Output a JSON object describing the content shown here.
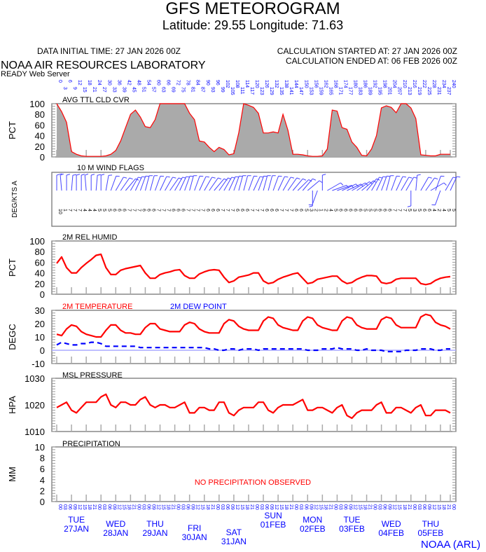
{
  "header": {
    "title": "GFS METEOROGRAM",
    "location": "Latitude: 29.55 Longitude:  71.63",
    "data_initial_time": "DATA INITIAL TIME: 27 JAN 2026 00Z",
    "calc_started": "CALCULATION STARTED AT: 27 JAN 2026 00Z",
    "calc_ended": "CALCULATION ENDED AT: 06 FEB 2026 00Z",
    "org": "NOAA AIR RESOURCES LABORATORY",
    "server": "READY Web Server"
  },
  "footer": {
    "credit": "NOAA (ARL)"
  },
  "colors": {
    "axis_text": "#0000ff",
    "series_red": "#ff0000",
    "series_blue": "#0000ff",
    "cloud_fill": "#aaaaaa",
    "zero_line": "#aaaaff"
  },
  "time_axis": {
    "forecast_hours": [
      0,
      3,
      6,
      9,
      12,
      15,
      18,
      21,
      24,
      27,
      30,
      33,
      36,
      39,
      42,
      45,
      48,
      51,
      54,
      57,
      60,
      63,
      66,
      69,
      72,
      75,
      78,
      81,
      84,
      87,
      90,
      93,
      96,
      99,
      102,
      105,
      108,
      111,
      114,
      117,
      120,
      123,
      126,
      129,
      132,
      135,
      138,
      141,
      144,
      147,
      150,
      153,
      156,
      159,
      162,
      165,
      168,
      171,
      174,
      177,
      180,
      183,
      186,
      189,
      192,
      195,
      198,
      201,
      204,
      207,
      210,
      213,
      216,
      219,
      222,
      225,
      228,
      231,
      234,
      237,
      240
    ],
    "utc_hours": [
      "00",
      "03",
      "06",
      "09",
      "12",
      "15",
      "18",
      "21"
    ],
    "days": [
      {
        "dow": "TUE",
        "date": "27JAN"
      },
      {
        "dow": "WED",
        "date": "28JAN"
      },
      {
        "dow": "THU",
        "date": "29JAN"
      },
      {
        "dow": "FRI",
        "date": "30JAN"
      },
      {
        "dow": "SAT",
        "date": "31JAN"
      },
      {
        "dow": "SUN",
        "date": "01FEB"
      },
      {
        "dow": "MON",
        "date": "02FEB"
      },
      {
        "dow": "TUE",
        "date": "03FEB"
      },
      {
        "dow": "WED",
        "date": "04FEB"
      },
      {
        "dow": "THU",
        "date": "05FEB"
      }
    ]
  },
  "chart_data": [
    {
      "id": "cloud",
      "type": "area",
      "title": "AVG TTL CLD CVR",
      "ylabel": "PCT",
      "ylim": [
        0,
        100
      ],
      "yticks": [
        0,
        20,
        40,
        60,
        80,
        100
      ],
      "series": [
        {
          "name": "AVG TTL CLD CVR",
          "color": "#ff0000",
          "fill": "#aaaaaa",
          "values": [
            100,
            85,
            65,
            10,
            5,
            2,
            1,
            1,
            1,
            1,
            2,
            5,
            12,
            30,
            55,
            80,
            88,
            75,
            57,
            55,
            70,
            100,
            100,
            100,
            100,
            100,
            100,
            82,
            70,
            30,
            28,
            18,
            10,
            18,
            14,
            4,
            6,
            45,
            100,
            97,
            93,
            82,
            45,
            45,
            47,
            45,
            80,
            50,
            5,
            5,
            4,
            2,
            1,
            1,
            2,
            15,
            88,
            86,
            55,
            52,
            28,
            18,
            3,
            2,
            15,
            40,
            92,
            96,
            93,
            83,
            100,
            100,
            92,
            72,
            4,
            3,
            2,
            2,
            5,
            5,
            5
          ]
        }
      ]
    },
    {
      "id": "wind",
      "type": "wind-barbs",
      "title": "10 M  WIND FLAGS",
      "ylabel": "DEG/KTS  A",
      "direction_deg": [
        0,
        355,
        0,
        5,
        0,
        0,
        355,
        0,
        5,
        0,
        10,
        20,
        30,
        35,
        40,
        30,
        25,
        20,
        15,
        15,
        20,
        25,
        30,
        35,
        30,
        25,
        20,
        15,
        20,
        25,
        30,
        35,
        40,
        35,
        30,
        25,
        20,
        15,
        15,
        20,
        25,
        20,
        15,
        15,
        20,
        25,
        30,
        35,
        40,
        45,
        40,
        50,
        180,
        200,
        0,
        60,
        70,
        70,
        65,
        65,
        60,
        55,
        50,
        40,
        30,
        25,
        20,
        15,
        20,
        25,
        30,
        30,
        180,
        5,
        30,
        35,
        60,
        20,
        200,
        30,
        25
      ],
      "speed_kts": [
        10,
        1,
        7,
        7,
        7,
        4,
        4,
        4,
        5,
        5,
        5,
        6,
        6,
        6,
        7,
        7,
        7,
        6,
        6,
        6,
        7,
        7,
        7,
        6,
        6,
        6,
        7,
        7,
        7,
        7,
        6,
        6,
        6,
        7,
        7,
        7,
        6,
        6,
        6,
        7,
        7,
        7,
        6,
        6,
        6,
        7,
        7,
        7,
        6,
        6,
        5,
        3,
        2,
        1,
        2,
        4,
        5,
        6,
        6,
        6,
        6,
        6,
        5,
        5,
        5,
        6,
        6,
        6,
        7,
        7,
        7,
        5,
        3,
        5,
        6,
        6,
        4,
        2,
        4,
        5,
        5
      ]
    },
    {
      "id": "rh",
      "type": "line",
      "title": "2M REL HUMID",
      "ylabel": "PCT",
      "ylim": [
        0,
        100
      ],
      "yticks": [
        0,
        20,
        40,
        60,
        80,
        100
      ],
      "series": [
        {
          "name": "2M REL HUMID",
          "color": "#ff0000",
          "values": [
            58,
            70,
            50,
            40,
            40,
            50,
            58,
            65,
            73,
            75,
            50,
            37,
            37,
            45,
            48,
            50,
            52,
            54,
            40,
            30,
            30,
            37,
            40,
            42,
            45,
            46,
            35,
            30,
            30,
            38,
            42,
            45,
            46,
            45,
            32,
            22,
            25,
            32,
            34,
            36,
            40,
            40,
            25,
            20,
            22,
            28,
            32,
            35,
            38,
            40,
            30,
            20,
            22,
            28,
            30,
            32,
            34,
            34,
            25,
            20,
            22,
            28,
            32,
            35,
            35,
            34,
            22,
            20,
            22,
            28,
            30,
            30,
            30,
            30,
            20,
            18,
            20,
            26,
            30,
            32,
            33
          ]
        }
      ]
    },
    {
      "id": "temp",
      "type": "line",
      "ylabel": "DEGC",
      "ylim": [
        -10,
        30
      ],
      "yticks": [
        -10,
        0,
        10,
        20,
        30
      ],
      "series": [
        {
          "name": "2M TEMPERATURE",
          "color": "#ff0000",
          "style": "solid",
          "values": [
            12,
            11,
            16,
            19,
            18,
            14,
            12,
            11,
            10,
            10,
            15,
            19,
            19,
            15,
            13,
            13,
            12,
            12,
            17,
            20,
            20,
            16,
            15,
            14,
            14,
            14,
            19,
            21,
            20,
            16,
            14,
            13,
            13,
            13,
            20,
            23,
            22,
            18,
            16,
            15,
            15,
            15,
            22,
            25,
            24,
            19,
            17,
            16,
            15,
            15,
            22,
            25,
            24,
            19,
            17,
            16,
            15,
            15,
            22,
            25,
            24,
            19,
            17,
            16,
            16,
            16,
            23,
            25,
            24,
            19,
            17,
            17,
            17,
            17,
            25,
            27,
            26,
            21,
            19,
            18,
            16
          ]
        },
        {
          "name": "2M   DEW POINT",
          "color": "#0000ff",
          "style": "dashed",
          "values": [
            4,
            6,
            5,
            4,
            4,
            5,
            5,
            6,
            6,
            5,
            3,
            3,
            3,
            3,
            3,
            3,
            3,
            2,
            2,
            2,
            2,
            2,
            2,
            2,
            2,
            2,
            2,
            2,
            2,
            2,
            2,
            1,
            1,
            0,
            0,
            1,
            1,
            0,
            1,
            1,
            1,
            0,
            1,
            1,
            1,
            1,
            1,
            1,
            1,
            1,
            1,
            0,
            0,
            0,
            1,
            1,
            1,
            2,
            1,
            1,
            1,
            0,
            0,
            1,
            0,
            0,
            0,
            -1,
            -1,
            -1,
            -1,
            0,
            0,
            0,
            1,
            1,
            1,
            0,
            0,
            1,
            1
          ]
        }
      ]
    },
    {
      "id": "pressure",
      "type": "line",
      "title": "MSL PRESSURE",
      "ylabel": "HPA",
      "ylim": [
        1010,
        1030
      ],
      "yticks": [
        1010,
        1020,
        1030
      ],
      "series": [
        {
          "name": "MSL PRESSURE",
          "color": "#ff0000",
          "values": [
            1019,
            1020,
            1021,
            1018,
            1017,
            1019,
            1021,
            1021,
            1021,
            1023,
            1024,
            1020,
            1019,
            1021,
            1021,
            1020,
            1020,
            1022,
            1023,
            1020,
            1019,
            1020,
            1020,
            1019,
            1019,
            1020,
            1021,
            1017,
            1017,
            1019,
            1019,
            1018,
            1018,
            1021,
            1021,
            1017,
            1016,
            1018,
            1019,
            1019,
            1019,
            1021,
            1021,
            1018,
            1017,
            1019,
            1020,
            1020,
            1020,
            1021,
            1022,
            1018,
            1018,
            1019,
            1019,
            1018,
            1017,
            1019,
            1020,
            1016,
            1015,
            1017,
            1018,
            1018,
            1018,
            1020,
            1021,
            1017,
            1017,
            1019,
            1019,
            1018,
            1017,
            1019,
            1020,
            1016,
            1016,
            1018,
            1018,
            1018,
            1017
          ]
        }
      ]
    },
    {
      "id": "precip",
      "type": "bar",
      "title": "PRECIPITATION",
      "ylabel": "MM",
      "ylim": [
        0,
        10
      ],
      "yticks": [
        0,
        2,
        4,
        6,
        8,
        10
      ],
      "annotation": "NO PRECIPITATION OBSERVED",
      "values": []
    }
  ]
}
